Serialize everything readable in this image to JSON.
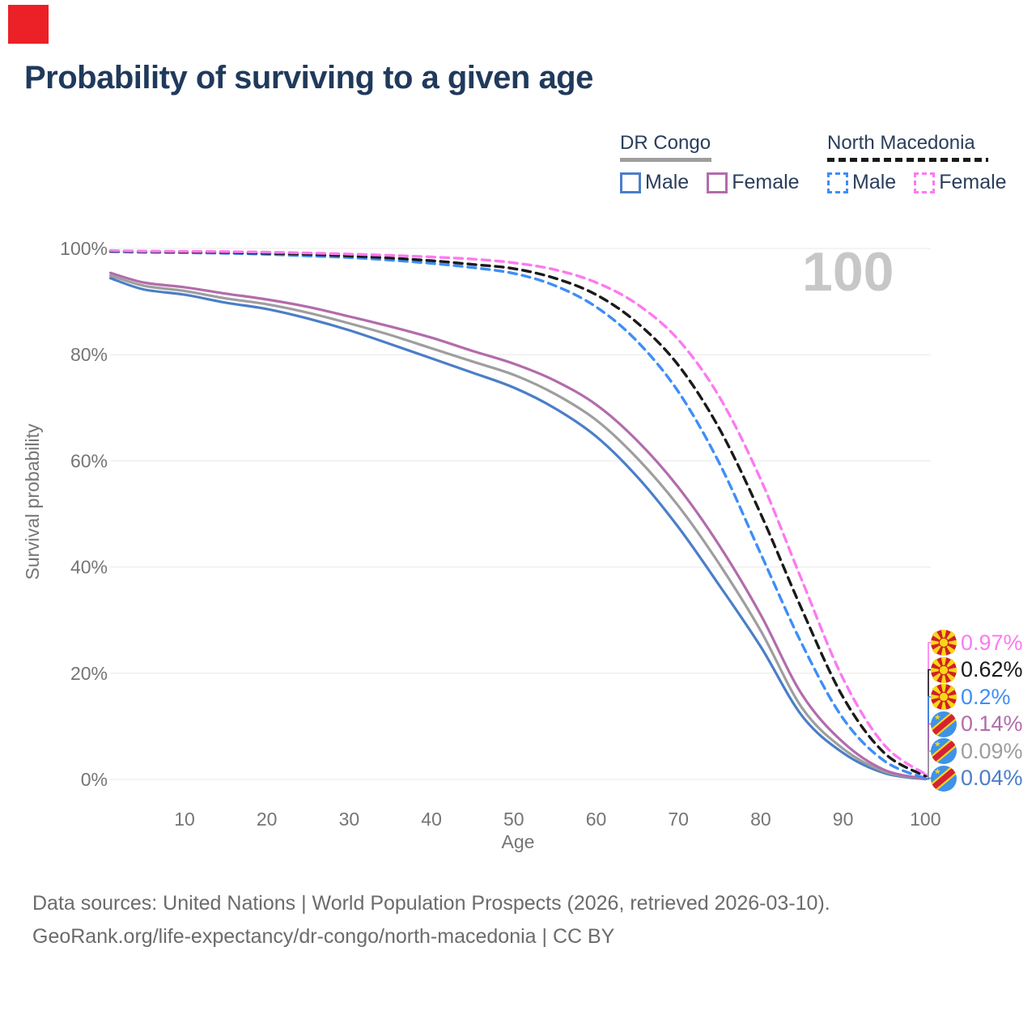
{
  "header": {
    "title": "Probability of surviving to a given age"
  },
  "legend": {
    "groups": [
      {
        "country": "DR Congo",
        "line_style": "solid",
        "underline_color": "#9e9e9e",
        "items": [
          {
            "label": "Male",
            "color": "#4b7ec8"
          },
          {
            "label": "Female",
            "color": "#b26cab"
          }
        ]
      },
      {
        "country": "North Macedonia",
        "line_style": "dashed",
        "underline_color": "#1a1a1a",
        "items": [
          {
            "label": "Male",
            "color": "#3e8ef7"
          },
          {
            "label": "Female",
            "color": "#fc7af0"
          }
        ]
      }
    ]
  },
  "watermark": {
    "text": "100"
  },
  "axes": {
    "x_label": "Age",
    "y_label": "Survival probability"
  },
  "chart_data": {
    "type": "line",
    "title": "Probability of surviving to a given age",
    "xlabel": "Age",
    "ylabel": "Survival probability",
    "xlim": [
      1,
      100
    ],
    "ylim": [
      0,
      100
    ],
    "grid": "horizontal",
    "x_ticks": [
      10,
      20,
      30,
      40,
      50,
      60,
      70,
      80,
      90,
      100
    ],
    "y_ticks": [
      {
        "value": 0,
        "label": "0%"
      },
      {
        "value": 20,
        "label": "20%"
      },
      {
        "value": 40,
        "label": "40%"
      },
      {
        "value": 60,
        "label": "60%"
      },
      {
        "value": 80,
        "label": "80%"
      },
      {
        "value": 100,
        "label": "100%"
      }
    ],
    "ages": [
      1,
      5,
      10,
      15,
      20,
      25,
      30,
      35,
      40,
      45,
      50,
      55,
      60,
      65,
      70,
      75,
      80,
      85,
      90,
      95,
      100
    ],
    "series": [
      {
        "id": "nm_female",
        "name": "North Macedonia Female",
        "country": "North Macedonia",
        "sex": "Female",
        "color": "#fc7af0",
        "dashed": true,
        "flag": "north-macedonia",
        "end_label": "0.97%",
        "values": [
          99.6,
          99.5,
          99.45,
          99.4,
          99.3,
          99.15,
          98.95,
          98.7,
          98.4,
          98.0,
          97.3,
          96.0,
          93.6,
          89.5,
          82.8,
          72.0,
          56.5,
          37.5,
          19.0,
          6.5,
          0.97
        ]
      },
      {
        "id": "nm_all",
        "name": "North Macedonia",
        "country": "North Macedonia",
        "sex": "",
        "color": "#1a1a1a",
        "dashed": true,
        "flag": "north-macedonia",
        "end_label": "0.62%",
        "values": [
          99.5,
          99.4,
          99.35,
          99.25,
          99.1,
          98.9,
          98.6,
          98.2,
          97.7,
          97.0,
          96.2,
          94.4,
          91.3,
          86.0,
          78.0,
          66.0,
          50.0,
          32.0,
          15.5,
          5.0,
          0.62
        ]
      },
      {
        "id": "nm_male",
        "name": "North Macedonia Male",
        "country": "North Macedonia",
        "sex": "Male",
        "color": "#3e8ef7",
        "dashed": true,
        "flag": "north-macedonia",
        "end_label": "0.2%",
        "values": [
          99.4,
          99.3,
          99.2,
          99.1,
          98.9,
          98.6,
          98.3,
          97.8,
          97.2,
          96.4,
          95.3,
          93.0,
          89.0,
          82.5,
          73.0,
          59.5,
          42.5,
          25.5,
          11.5,
          3.5,
          0.2
        ]
      },
      {
        "id": "drc_female",
        "name": "DR Congo Female",
        "country": "DR Congo",
        "sex": "Female",
        "color": "#b26cab",
        "dashed": false,
        "flag": "dr-congo",
        "end_label": "0.14%",
        "values": [
          95.4,
          93.6,
          92.7,
          91.5,
          90.4,
          89.0,
          87.2,
          85.3,
          83.2,
          80.7,
          78.3,
          75.1,
          70.6,
          63.8,
          55.0,
          44.0,
          31.0,
          16.0,
          7.0,
          1.8,
          0.14
        ]
      },
      {
        "id": "drc_all",
        "name": "DR Congo",
        "country": "DR Congo",
        "sex": "",
        "color": "#9e9e9e",
        "dashed": false,
        "flag": "dr-congo",
        "end_label": "0.09%",
        "values": [
          94.9,
          93.0,
          92.0,
          90.6,
          89.5,
          87.9,
          85.9,
          83.7,
          81.2,
          78.7,
          76.2,
          72.6,
          67.7,
          60.5,
          51.5,
          40.5,
          28.0,
          13.5,
          5.8,
          1.5,
          0.09
        ]
      },
      {
        "id": "drc_male",
        "name": "DR Congo Male",
        "country": "DR Congo",
        "sex": "Male",
        "color": "#4b7ec8",
        "dashed": false,
        "flag": "dr-congo",
        "end_label": "0.04%",
        "values": [
          94.4,
          92.3,
          91.3,
          89.8,
          88.6,
          86.8,
          84.6,
          82.0,
          79.3,
          76.6,
          73.8,
          69.9,
          64.6,
          57.0,
          47.5,
          36.5,
          25.0,
          12.0,
          5.0,
          1.2,
          0.04
        ]
      }
    ],
    "legend_position": "top-right",
    "watermark": "100"
  },
  "footer": {
    "line1": "Data sources: United Nations | World Population Prospects (2026, retrieved 2026-03-10).",
    "line2": "GeoRank.org/life-expectancy/dr-congo/north-macedonia | CC BY"
  }
}
